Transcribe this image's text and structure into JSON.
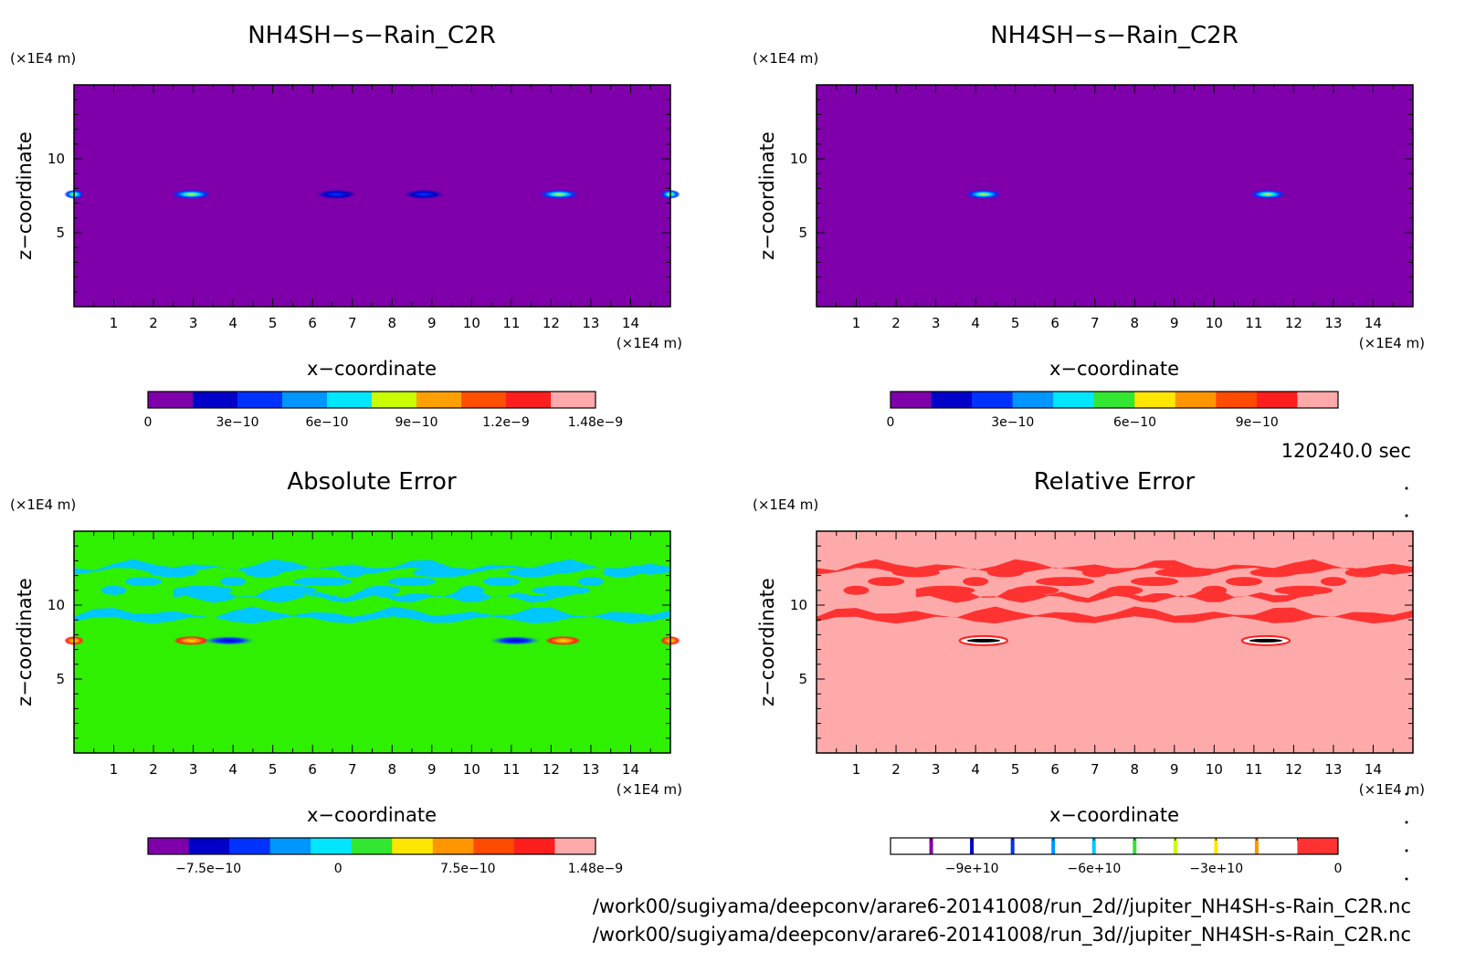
{
  "timestamp": "120240.0 sec",
  "file_paths": [
    "/work00/sugiyama/deepconv/arare6-20141008/run_2d//jupiter_NH4SH-s-Rain_C2R.nc",
    "/work00/sugiyama/deepconv/arare6-20141008/run_3d//jupiter_NH4SH-s-Rain_C2R.nc"
  ],
  "chart_data": [
    {
      "type": "heatmap",
      "title": "NH4SH−s−Rain_C2R",
      "xlabel": "x−coordinate",
      "ylabel": "z−coordinate",
      "x_unit": "(×1E4 m)",
      "y_unit": "(×1E4 m)",
      "xlim": [
        0,
        15
      ],
      "ylim": [
        0,
        15
      ],
      "x_ticks": [
        "1",
        "2",
        "3",
        "4",
        "5",
        "6",
        "7",
        "8",
        "9",
        "10",
        "11",
        "12",
        "13",
        "14"
      ],
      "y_ticks": [
        "5",
        "10"
      ],
      "background_color": "#7f00aa",
      "features": [
        {
          "x": 0.0,
          "z": 7.6,
          "width": 0.5,
          "peak": "high"
        },
        {
          "x": 2.95,
          "z": 7.6,
          "width": 1.0,
          "peak": "high"
        },
        {
          "x": 6.6,
          "z": 7.6,
          "width": 1.0,
          "peak": "low"
        },
        {
          "x": 8.8,
          "z": 7.6,
          "width": 1.0,
          "peak": "low"
        },
        {
          "x": 12.2,
          "z": 7.6,
          "width": 1.0,
          "peak": "high"
        },
        {
          "x": 15.0,
          "z": 7.6,
          "width": 0.5,
          "peak": "high"
        }
      ],
      "colorbar": {
        "colors": [
          "#7f00aa",
          "#0000c8",
          "#0032ff",
          "#0096ff",
          "#00e6ff",
          "#c8ff00",
          "#ffa000",
          "#ff5000",
          "#ff1e1e",
          "#ffaaaa"
        ],
        "labels": [
          "0",
          "3e−10",
          "6e−10",
          "9e−10",
          "1.2e−9",
          "1.48e−9"
        ],
        "label_positions": [
          0,
          0.2,
          0.4,
          0.6,
          0.8,
          1.0
        ]
      }
    },
    {
      "type": "heatmap",
      "title": "NH4SH−s−Rain_C2R",
      "xlabel": "x−coordinate",
      "ylabel": "z−coordinate",
      "x_unit": "(×1E4 m)",
      "y_unit": "(×1E4 m)",
      "xlim": [
        0,
        15
      ],
      "ylim": [
        0,
        15
      ],
      "x_ticks": [
        "1",
        "2",
        "3",
        "4",
        "5",
        "6",
        "7",
        "8",
        "9",
        "10",
        "11",
        "12",
        "13",
        "14"
      ],
      "y_ticks": [
        "5",
        "10"
      ],
      "background_color": "#7f00aa",
      "features": [
        {
          "x": 4.2,
          "z": 7.6,
          "width": 0.9,
          "peak": "high"
        },
        {
          "x": 11.35,
          "z": 7.6,
          "width": 0.9,
          "peak": "high"
        }
      ],
      "colorbar": {
        "colors": [
          "#7f00aa",
          "#0000c8",
          "#0032ff",
          "#0096ff",
          "#00e6ff",
          "#32e632",
          "#ffe600",
          "#ff9600",
          "#ff4b00",
          "#ff1e1e",
          "#ffaaaa"
        ],
        "labels": [
          "0",
          "3e−10",
          "6e−10",
          "9e−10"
        ],
        "label_positions": [
          0,
          0.273,
          0.546,
          0.819
        ]
      }
    },
    {
      "type": "heatmap",
      "title": "Absolute Error",
      "xlabel": "x−coordinate",
      "ylabel": "z−coordinate",
      "x_unit": "(×1E4 m)",
      "y_unit": "(×1E4 m)",
      "xlim": [
        0,
        15
      ],
      "ylim": [
        0,
        15
      ],
      "x_ticks": [
        "1",
        "2",
        "3",
        "4",
        "5",
        "6",
        "7",
        "8",
        "9",
        "10",
        "11",
        "12",
        "13",
        "14"
      ],
      "y_ticks": [
        "5",
        "10"
      ],
      "background_color": "#2ff000",
      "secondary_color": "#00c8ff",
      "bands": [
        {
          "x0": 0.0,
          "x1": 15.0,
          "z0": 12.3,
          "z1": 12.7
        },
        {
          "x0": 0.0,
          "x1": 15.0,
          "z0": 9.0,
          "z1": 9.5
        },
        {
          "x0": 2.5,
          "x1": 12.5,
          "z0": 10.4,
          "z1": 10.8
        }
      ],
      "features": [
        {
          "x": 0.0,
          "z": 7.6,
          "width": 0.5,
          "peak": "high"
        },
        {
          "x": 2.95,
          "z": 7.6,
          "width": 0.9,
          "peak": "high"
        },
        {
          "x": 3.9,
          "z": 7.6,
          "width": 1.3,
          "peak": "low"
        },
        {
          "x": 11.1,
          "z": 7.6,
          "width": 1.3,
          "peak": "low"
        },
        {
          "x": 12.3,
          "z": 7.6,
          "width": 0.9,
          "peak": "high"
        },
        {
          "x": 15.0,
          "z": 7.6,
          "width": 0.5,
          "peak": "high"
        }
      ],
      "colorbar": {
        "colors": [
          "#7f00aa",
          "#0000c8",
          "#0032ff",
          "#0096ff",
          "#00e6ff",
          "#32e632",
          "#ffe600",
          "#ff9600",
          "#ff4b00",
          "#ff1e1e",
          "#ffaaaa"
        ],
        "labels": [
          "−7.5e−10",
          "0",
          "7.5e−10",
          "1.48e−9"
        ],
        "label_positions": [
          0.135,
          0.425,
          0.715,
          1.0
        ]
      }
    },
    {
      "type": "heatmap",
      "title": "Relative Error",
      "xlabel": "x−coordinate",
      "ylabel": "z−coordinate",
      "x_unit": "(×1E4 m)",
      "y_unit": "(×1E4 m)",
      "xlim": [
        0,
        15
      ],
      "ylim": [
        0,
        15
      ],
      "x_ticks": [
        "1",
        "2",
        "3",
        "4",
        "5",
        "6",
        "7",
        "8",
        "9",
        "10",
        "11",
        "12",
        "13",
        "14"
      ],
      "y_ticks": [
        "5",
        "10"
      ],
      "background_color": "#ffaaaa",
      "secondary_color": "#ff3232",
      "bands": [
        {
          "x0": 0.0,
          "x1": 15.0,
          "z0": 12.3,
          "z1": 12.7
        },
        {
          "x0": 0.0,
          "x1": 15.0,
          "z0": 9.0,
          "z1": 9.5
        },
        {
          "x0": 2.5,
          "x1": 12.5,
          "z0": 10.4,
          "z1": 10.8
        }
      ],
      "features": [
        {
          "x": 4.2,
          "z": 7.6,
          "width": 1.2,
          "peak": "ring"
        },
        {
          "x": 11.3,
          "z": 7.6,
          "width": 1.2,
          "peak": "ring"
        }
      ],
      "colorbar": {
        "colors": [
          "#ffffff",
          "#ffffff",
          "#ffffff",
          "#ffffff",
          "#ffffff",
          "#ffffff",
          "#ffffff",
          "#ffffff",
          "#ffffff",
          "#ffffff",
          "#ff3232"
        ],
        "stripe_colors": [
          "#7f00aa",
          "#0000c8",
          "#0032ff",
          "#0096ff",
          "#00c8ff",
          "#32e632",
          "#c8ff00",
          "#ffe600",
          "#ff9600"
        ],
        "labels": [
          "−9e+10",
          "−6e+10",
          "−3e+10",
          "0"
        ],
        "label_positions": [
          0.182,
          0.455,
          0.728,
          1.0
        ]
      }
    }
  ]
}
